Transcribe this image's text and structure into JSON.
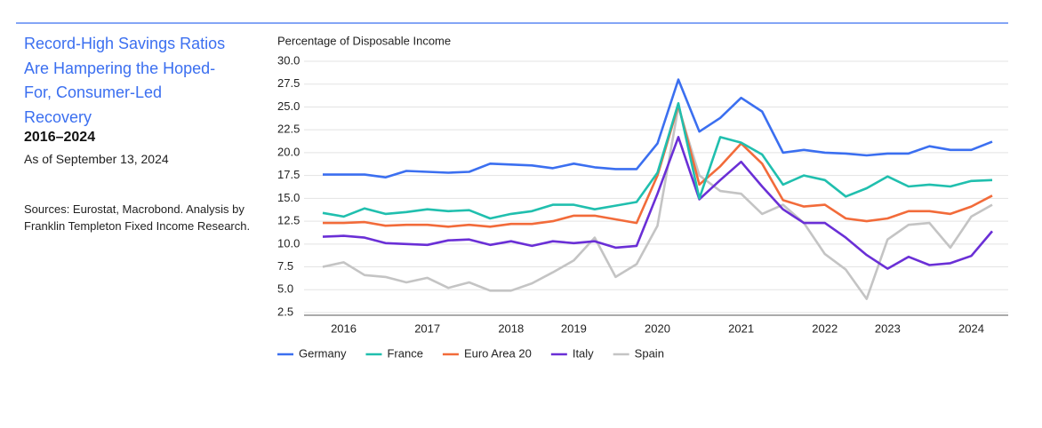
{
  "chart_data": {
    "type": "line",
    "title": "Record-High Savings Ratios Are Hampering the Hoped-For, Consumer-Led Recovery",
    "subtitle": "2016–2024",
    "date_note": "As of September 13, 2024",
    "source": "Sources: Eurostat, Macrobond. Analysis by Franklin Templeton Fixed Income Research.",
    "y_label": "Percentage of Disposable Income",
    "categories": [
      null,
      "2016",
      null,
      null,
      null,
      "2017",
      null,
      null,
      null,
      "2018",
      null,
      null,
      "2019",
      null,
      null,
      null,
      "2020",
      null,
      null,
      null,
      "2021",
      null,
      null,
      null,
      "2022",
      null,
      null,
      "2023",
      null,
      null,
      null,
      "2024",
      null
    ],
    "ylim": [
      2.5,
      30
    ],
    "yticks": [
      {
        "value": 2.5,
        "label": "2.5"
      },
      {
        "value": 5,
        "label": "5.0"
      },
      {
        "value": 7.5,
        "label": "7.5"
      },
      {
        "value": 10,
        "label": "10.0"
      },
      {
        "value": 12.5,
        "label": "12.5"
      },
      {
        "value": 15,
        "label": "15.0"
      },
      {
        "value": 17.5,
        "label": "17.5"
      },
      {
        "value": 20,
        "label": "20.0"
      },
      {
        "value": 22.5,
        "label": "22.5"
      },
      {
        "value": 25,
        "label": "25.0"
      },
      {
        "value": 27.5,
        "label": "27.5"
      },
      {
        "value": 30,
        "label": "30.0"
      }
    ],
    "grid": true,
    "legend": "bottom-left",
    "series": [
      {
        "name": "Germany",
        "color": "#3b6ff0",
        "values": [
          17.6,
          17.6,
          17.6,
          17.3,
          18.0,
          17.9,
          17.8,
          17.9,
          18.8,
          18.7,
          18.6,
          18.3,
          18.8,
          18.4,
          18.2,
          18.2,
          21.0,
          28.0,
          22.3,
          23.8,
          26.0,
          24.5,
          20.0,
          20.3,
          20.0,
          19.9,
          19.7,
          19.9,
          19.9,
          20.7,
          20.3,
          20.3,
          21.2
        ]
      },
      {
        "name": "France",
        "color": "#20bfae",
        "values": [
          13.4,
          13.0,
          13.9,
          13.3,
          13.5,
          13.8,
          13.6,
          13.7,
          12.8,
          13.3,
          13.6,
          14.3,
          14.3,
          13.8,
          14.2,
          14.6,
          17.8,
          25.4,
          15.0,
          21.7,
          21.1,
          19.8,
          16.5,
          17.5,
          17.0,
          15.2,
          16.1,
          17.4,
          16.3,
          16.5,
          16.3,
          16.9,
          17.0
        ]
      },
      {
        "name": "Euro Area 20",
        "color": "#f26b3a",
        "values": [
          12.3,
          12.3,
          12.4,
          12.0,
          12.1,
          12.1,
          11.9,
          12.1,
          11.9,
          12.2,
          12.2,
          12.5,
          13.1,
          13.1,
          12.7,
          12.3,
          17.5,
          25.2,
          16.5,
          18.5,
          21.0,
          18.8,
          14.8,
          14.1,
          14.3,
          12.8,
          12.5,
          12.8,
          13.6,
          13.6,
          13.3,
          14.1,
          15.3
        ]
      },
      {
        "name": "Italy",
        "color": "#6a2fd6",
        "values": [
          10.8,
          10.9,
          10.7,
          10.1,
          10.0,
          9.9,
          10.4,
          10.5,
          9.9,
          10.3,
          9.8,
          10.3,
          10.1,
          10.3,
          9.6,
          9.8,
          15.5,
          21.7,
          14.9,
          17.0,
          19.0,
          16.3,
          13.8,
          12.3,
          12.3,
          10.7,
          8.8,
          7.3,
          8.6,
          7.7,
          7.9,
          8.7,
          11.4
        ]
      },
      {
        "name": "Spain",
        "color": "#c4c4c4",
        "values": [
          7.5,
          8.0,
          6.6,
          6.4,
          5.8,
          6.3,
          5.2,
          5.8,
          4.9,
          4.9,
          5.7,
          6.9,
          8.2,
          10.7,
          6.4,
          7.8,
          12.0,
          25.0,
          17.5,
          15.8,
          15.5,
          13.3,
          14.3,
          12.3,
          8.9,
          7.2,
          4.0,
          10.5,
          12.1,
          12.3,
          9.6,
          13.0,
          14.3
        ]
      }
    ]
  }
}
